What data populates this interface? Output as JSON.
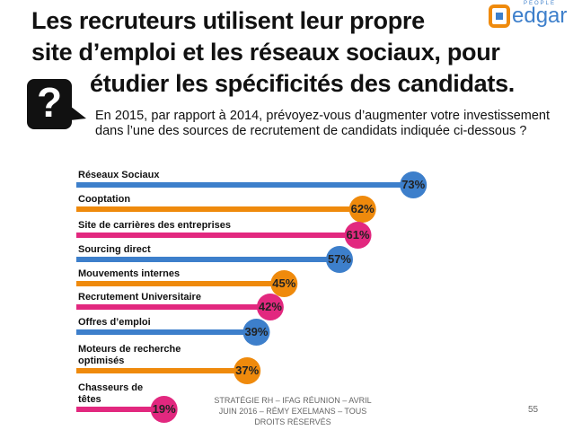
{
  "chart_data": {
    "type": "bar",
    "orientation": "horizontal",
    "title": [
      "Les recruteurs utilisent leur propre",
      "site d’emploi et les réseaux  sociaux, pour",
      "étudier les spécificités des candidats."
    ],
    "subtitle": "En 2015, par rapport à 2014, prévoyez-vous d’augmenter votre investissement dans l’une des sources de recrutement de candidats indiquée ci-dessous ?",
    "categories": [
      "Réseaux Sociaux",
      "Cooptation",
      "Site  de carrières des entreprises",
      "Sourcing direct",
      "Mouvements internes",
      "Recrutement Universitaire",
      "Offres d’emploi",
      "Moteurs de recherche optimisés",
      "Chasseurs de têtes"
    ],
    "values": [
      73,
      62,
      61,
      57,
      45,
      42,
      39,
      37,
      19
    ],
    "value_labels": [
      "73%",
      "62%",
      "61%",
      "57%",
      "45%",
      "42%",
      "39%",
      "37%",
      "19%"
    ],
    "colors": [
      "#3d7fcb",
      "#ef8a0c",
      "#e2287f",
      "#3d7fcb",
      "#ef8a0c",
      "#e2287f",
      "#3d7fcb",
      "#ef8a0c",
      "#e2287f"
    ]
  },
  "icon": "?",
  "logo": {
    "tag": "PEOPLE",
    "name": "edgar"
  },
  "footer": "STRATÉGIE RH – IFAG RÉUNION – AVRIL JUIN 2016 – RÉMY EXELMANS – TOUS DROITS RÉSERVÉS",
  "page_number": "55"
}
